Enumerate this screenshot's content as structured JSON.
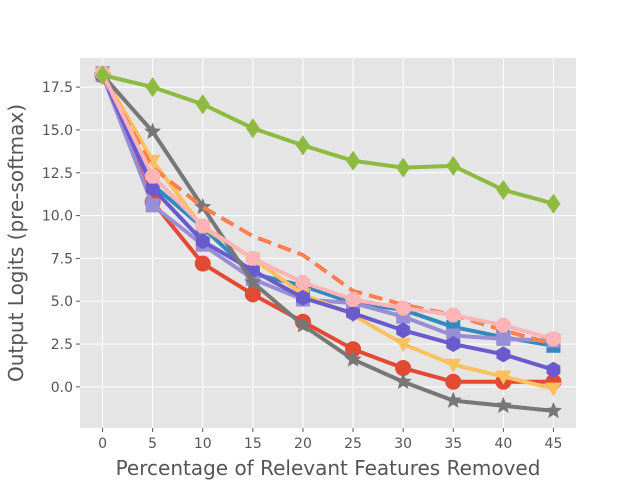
{
  "chart_data": {
    "type": "line",
    "title": "",
    "xlabel": "Percentage of Relevant Features Removed",
    "ylabel": "Output Logits (pre-softmax)",
    "x": [
      0,
      5,
      10,
      15,
      20,
      25,
      30,
      35,
      40,
      45
    ],
    "xlim": [
      -2.25,
      47.25
    ],
    "ylim": [
      -2.4,
      19.2
    ],
    "xticks": [
      0,
      5,
      10,
      15,
      20,
      25,
      30,
      35,
      40,
      45
    ],
    "yticks": [
      0.0,
      2.5,
      5.0,
      7.5,
      10.0,
      12.5,
      15.0,
      17.5
    ],
    "xtick_labels": [
      "0",
      "5",
      "10",
      "15",
      "20",
      "25",
      "30",
      "35",
      "40",
      "45"
    ],
    "ytick_labels": [
      "0.0",
      "2.5",
      "5.0",
      "7.5",
      "10.0",
      "12.5",
      "15.0",
      "17.5"
    ],
    "grid": true,
    "background": "#e5e5e5",
    "series": [
      {
        "color": "#348abd",
        "marker": "square",
        "dash": false,
        "values": [
          18.3,
          11.8,
          9.3,
          6.6,
          5.9,
          4.9,
          4.5,
          3.5,
          2.9,
          2.4
        ]
      },
      {
        "color": "#e24a33",
        "marker": "circle",
        "dash": false,
        "values": [
          18.2,
          10.8,
          7.2,
          5.4,
          3.8,
          2.2,
          1.1,
          0.3,
          0.3,
          0.3
        ]
      },
      {
        "color": "#988ed5",
        "marker": "square",
        "dash": false,
        "values": [
          18.2,
          10.6,
          8.3,
          6.3,
          5.1,
          4.9,
          4.1,
          3.0,
          2.8,
          2.7
        ]
      },
      {
        "color": "#fbc15e",
        "marker": "triangle-down",
        "dash": false,
        "values": [
          18.3,
          13.2,
          9.3,
          7.5,
          5.4,
          4.2,
          2.5,
          1.3,
          0.6,
          -0.1
        ]
      },
      {
        "color": "#6a5acd",
        "marker": "hexagon",
        "dash": false,
        "values": [
          18.2,
          11.6,
          8.5,
          6.8,
          5.2,
          4.3,
          3.3,
          2.5,
          1.9,
          1.0
        ]
      },
      {
        "color": "#777777",
        "marker": "star",
        "dash": false,
        "values": [
          18.2,
          14.9,
          10.5,
          6.1,
          3.6,
          1.6,
          0.3,
          -0.8,
          -1.1,
          -1.4
        ]
      },
      {
        "color": "#ff7f50",
        "marker": "none",
        "dash": true,
        "values": [
          18.1,
          12.8,
          10.5,
          8.8,
          7.7,
          5.6,
          4.8,
          4.2,
          3.3,
          2.5
        ]
      },
      {
        "color": "#ffb5b8",
        "marker": "octagon",
        "dash": false,
        "values": [
          18.3,
          12.3,
          9.4,
          7.5,
          6.1,
          5.1,
          4.6,
          4.2,
          3.6,
          2.8
        ]
      },
      {
        "color": "#8eba42",
        "marker": "thin-diamond",
        "dash": false,
        "values": [
          18.2,
          17.5,
          16.5,
          15.1,
          14.1,
          13.2,
          12.8,
          12.9,
          11.5,
          10.7
        ]
      }
    ]
  }
}
